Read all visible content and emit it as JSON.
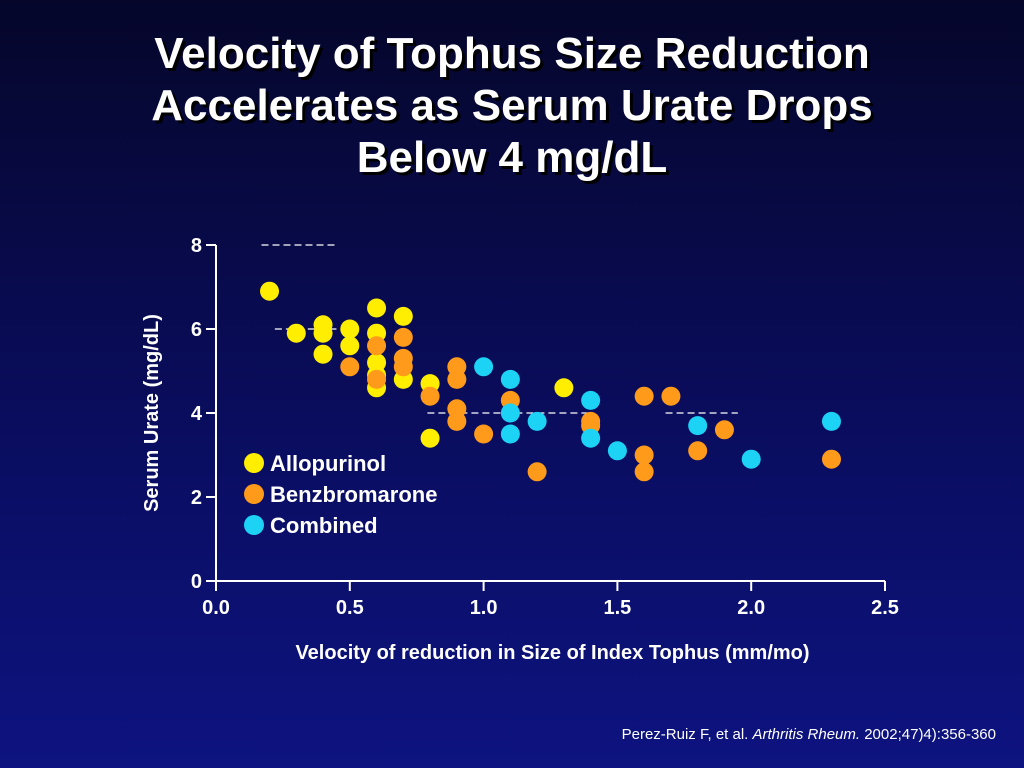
{
  "title_lines": [
    "Velocity of Tophus Size Reduction",
    "Accelerates as Serum Urate Drops",
    "Below 4 mg/dL"
  ],
  "citation": {
    "authors": "Perez-Ruiz F, et al.",
    "journal": "Arthritis Rheum.",
    "details": "2002;47)4):356-360"
  },
  "colors": {
    "background_top": "#05062a",
    "background_bottom": "#0d1380",
    "allopurinol": "#ffee00",
    "benzbromarone": "#ff9a1a",
    "combined": "#1cd3f6",
    "axis": "#ffffff"
  },
  "chart_data": {
    "type": "scatter",
    "xlabel": "Velocity of reduction in Size of Index Tophus (mm/mo)",
    "ylabel": "Serum Urate (mg/dL)",
    "xlim": [
      0,
      2.5
    ],
    "ylim": [
      0,
      8
    ],
    "x_ticks": [
      "0.0",
      "0.5",
      "1.0",
      "1.5",
      "2.0",
      "2.5"
    ],
    "y_ticks": [
      "0",
      "2",
      "4",
      "6",
      "8"
    ],
    "grid": false,
    "legend_position": "lower-left",
    "reference_lines": [
      {
        "x": [
          0.17,
          0.45
        ],
        "y": 8
      },
      {
        "x": [
          0.22,
          0.45
        ],
        "y": 6
      },
      {
        "x": [
          0.79,
          1.4
        ],
        "y": 4
      },
      {
        "x": [
          1.68,
          1.95
        ],
        "y": 4
      }
    ],
    "series": [
      {
        "name": "Allopurinol",
        "color": "#ffee00",
        "points": [
          [
            0.2,
            6.9
          ],
          [
            0.3,
            5.9
          ],
          [
            0.4,
            6.1
          ],
          [
            0.4,
            5.9
          ],
          [
            0.4,
            5.4
          ],
          [
            0.5,
            6.0
          ],
          [
            0.5,
            5.6
          ],
          [
            0.6,
            6.5
          ],
          [
            0.6,
            5.9
          ],
          [
            0.6,
            5.2
          ],
          [
            0.6,
            4.9
          ],
          [
            0.6,
            4.6
          ],
          [
            0.7,
            6.3
          ],
          [
            0.7,
            4.8
          ],
          [
            0.8,
            4.7
          ],
          [
            0.8,
            3.4
          ],
          [
            1.3,
            4.6
          ]
        ]
      },
      {
        "name": "Benzbromarone",
        "color": "#ff9a1a",
        "points": [
          [
            0.5,
            5.1
          ],
          [
            0.6,
            5.6
          ],
          [
            0.6,
            4.8
          ],
          [
            0.7,
            5.8
          ],
          [
            0.7,
            5.3
          ],
          [
            0.7,
            5.1
          ],
          [
            0.8,
            4.4
          ],
          [
            0.9,
            5.1
          ],
          [
            0.9,
            4.8
          ],
          [
            0.9,
            4.1
          ],
          [
            0.9,
            3.8
          ],
          [
            1.0,
            3.5
          ],
          [
            1.1,
            4.3
          ],
          [
            1.2,
            2.6
          ],
          [
            1.4,
            3.8
          ],
          [
            1.4,
            3.7
          ],
          [
            1.6,
            4.4
          ],
          [
            1.6,
            3.0
          ],
          [
            1.6,
            2.6
          ],
          [
            1.7,
            4.4
          ],
          [
            1.8,
            3.1
          ],
          [
            1.9,
            3.6
          ],
          [
            2.3,
            2.9
          ]
        ]
      },
      {
        "name": "Combined",
        "color": "#1cd3f6",
        "points": [
          [
            1.0,
            5.1
          ],
          [
            1.1,
            4.8
          ],
          [
            1.1,
            4.0
          ],
          [
            1.1,
            3.5
          ],
          [
            1.2,
            3.8
          ],
          [
            1.4,
            4.3
          ],
          [
            1.4,
            3.4
          ],
          [
            1.5,
            3.1
          ],
          [
            1.8,
            3.7
          ],
          [
            2.0,
            2.9
          ],
          [
            2.3,
            3.8
          ]
        ]
      }
    ]
  }
}
